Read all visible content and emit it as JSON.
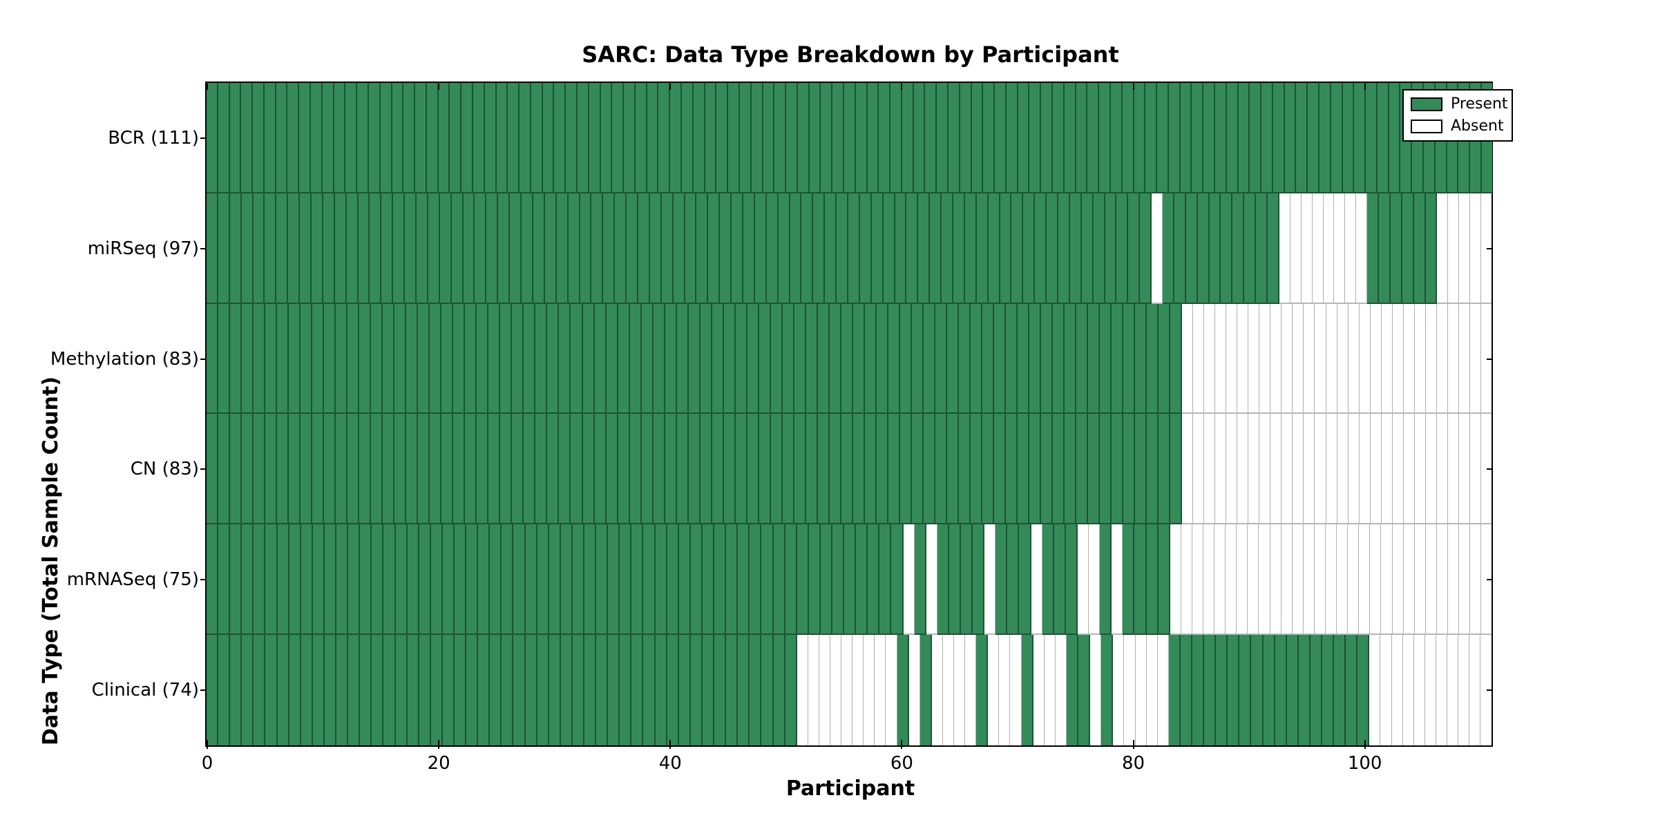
{
  "figure": {
    "title": "SARC: Data Type Breakdown by Participant",
    "background_color": "#ffffff"
  },
  "axes": {
    "xlabel": "Participant",
    "ylabel": "Data Type (Total Sample Count)"
  },
  "legend": {
    "present_label": "Present",
    "absent_label": "Absent",
    "present_color": "#348a58",
    "absent_color": "#ffffff"
  },
  "colors": {
    "present_fill": "#348a58",
    "present_divider": "#1c5434",
    "absent_fill": "#ffffff",
    "absent_divider": "#b0b0b0",
    "spine": "#000000"
  },
  "chart_data": {
    "type": "heatmap",
    "title": "SARC: Data Type Breakdown by Participant",
    "xlabel": "Participant",
    "ylabel": "Data Type (Total Sample Count)",
    "legend_entries": [
      "Present",
      "Absent"
    ],
    "legend_position": "upper right",
    "grid": false,
    "participants": 111,
    "x_ticks": [
      0,
      20,
      40,
      60,
      80,
      100
    ],
    "x_range": [
      0,
      111
    ],
    "value_encoding": {
      "present": 1,
      "absent": 0
    },
    "rows": [
      {
        "label": "BCR (111)",
        "data_type": "BCR",
        "total_sample_count": 111,
        "absent_ranges": []
      },
      {
        "label": "miRSeq (97)",
        "data_type": "miRSeq",
        "total_sample_count": 97,
        "absent_ranges": [
          [
            82,
            82
          ],
          [
            93,
            100
          ],
          [
            107,
            111
          ]
        ]
      },
      {
        "label": "Methylation (83)",
        "data_type": "Methylation",
        "total_sample_count": 83,
        "absent_ranges": [
          [
            84,
            111
          ]
        ]
      },
      {
        "label": "CN (83)",
        "data_type": "CN",
        "total_sample_count": 83,
        "absent_ranges": [
          [
            84,
            111
          ]
        ]
      },
      {
        "label": "mRNASeq (75)",
        "data_type": "mRNASeq",
        "total_sample_count": 75,
        "absent_ranges": [
          [
            60,
            60
          ],
          [
            62,
            62
          ],
          [
            67,
            67
          ],
          [
            71,
            71
          ],
          [
            75,
            76
          ],
          [
            78,
            78
          ],
          [
            83,
            111
          ]
        ]
      },
      {
        "label": "Clinical (74)",
        "data_type": "Clinical",
        "total_sample_count": 74,
        "absent_ranges": [
          [
            51,
            59
          ],
          [
            61,
            61
          ],
          [
            63,
            66
          ],
          [
            68,
            70
          ],
          [
            72,
            74
          ],
          [
            77,
            77
          ],
          [
            79,
            83
          ],
          [
            101,
            111
          ]
        ]
      }
    ]
  }
}
